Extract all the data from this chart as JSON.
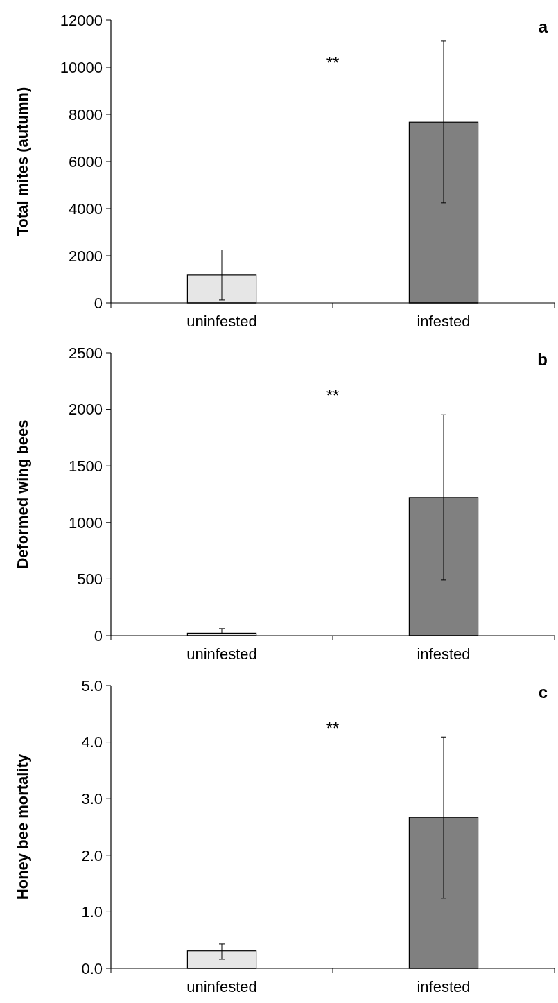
{
  "chart_data": [
    {
      "type": "bar",
      "title": "a",
      "ylabel": "Total mites (autumn)",
      "categories": [
        "uninfested",
        "infested"
      ],
      "values": [
        1180,
        7670
      ],
      "colors": [
        "#e6e6e6",
        "#808080"
      ],
      "errors": [
        [
          120,
          2250
        ],
        [
          4240,
          11120
        ]
      ],
      "ylim": [
        0,
        12000
      ],
      "yticks": [
        0,
        2000,
        4000,
        6000,
        8000,
        10000,
        12000
      ],
      "grid": false,
      "annotations": [
        "**"
      ]
    },
    {
      "type": "bar",
      "title": "b",
      "ylabel": "Deformed wing  bees",
      "categories": [
        "uninfested",
        "infested"
      ],
      "values": [
        22,
        1220
      ],
      "colors": [
        "#e6e6e6",
        "#808080"
      ],
      "errors": [
        [
          22,
          62
        ],
        [
          491,
          1953
        ]
      ],
      "ylim": [
        0,
        2500
      ],
      "yticks": [
        0,
        500,
        1000,
        1500,
        2000,
        2500
      ],
      "grid": false,
      "annotations": [
        "**"
      ]
    },
    {
      "type": "bar",
      "title": "c",
      "ylabel": "Honey bee mortality",
      "categories": [
        "uninfested",
        "infested"
      ],
      "values": [
        0.31,
        2.67
      ],
      "colors": [
        "#e6e6e6",
        "#808080"
      ],
      "errors": [
        [
          0.16,
          0.43
        ],
        [
          1.24,
          4.09
        ]
      ],
      "ylim": [
        0,
        5
      ],
      "yticks": [
        {
          "value": 0,
          "label": "0.0"
        },
        {
          "value": 1,
          "label": "1.0"
        },
        {
          "value": 2,
          "label": "2.0"
        },
        {
          "value": 3,
          "label": "3.0"
        },
        {
          "value": 4,
          "label": "4.0"
        },
        {
          "value": 5,
          "label": "5.0"
        }
      ],
      "grid": false,
      "annotations": [
        "**"
      ]
    }
  ]
}
